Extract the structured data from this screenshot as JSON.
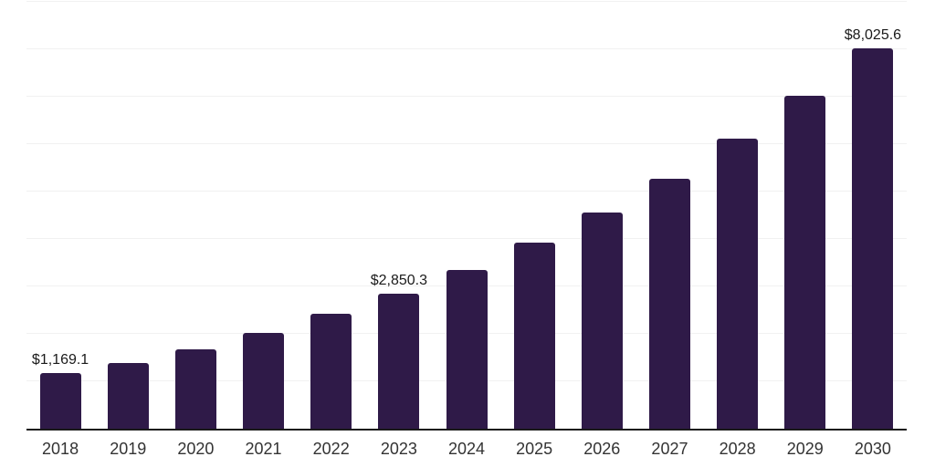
{
  "chart_data": {
    "type": "bar",
    "title": "",
    "xlabel": "",
    "ylabel": "",
    "categories": [
      "2018",
      "2019",
      "2020",
      "2021",
      "2022",
      "2023",
      "2024",
      "2025",
      "2026",
      "2027",
      "2028",
      "2029",
      "2030"
    ],
    "values": [
      1169.1,
      1385,
      1675,
      2015,
      2425,
      2850.3,
      3355,
      3930,
      4555,
      5275,
      6120,
      7020,
      8025.6
    ],
    "data_labels": [
      "$1,169.1",
      null,
      null,
      null,
      null,
      "$2,850.3",
      null,
      null,
      null,
      null,
      null,
      null,
      "$8,025.6"
    ],
    "ylim": [
      0,
      9000
    ],
    "gridline_step": 1000,
    "grid": "horizontal-only",
    "legend": "none",
    "colors": {
      "bar": "#2f1a48",
      "gridline": "#f1f1f1",
      "axis_line": "#1a1a1a",
      "tick_label": "#333333",
      "data_label": "#1a1a1a",
      "background": "#ffffff"
    }
  }
}
